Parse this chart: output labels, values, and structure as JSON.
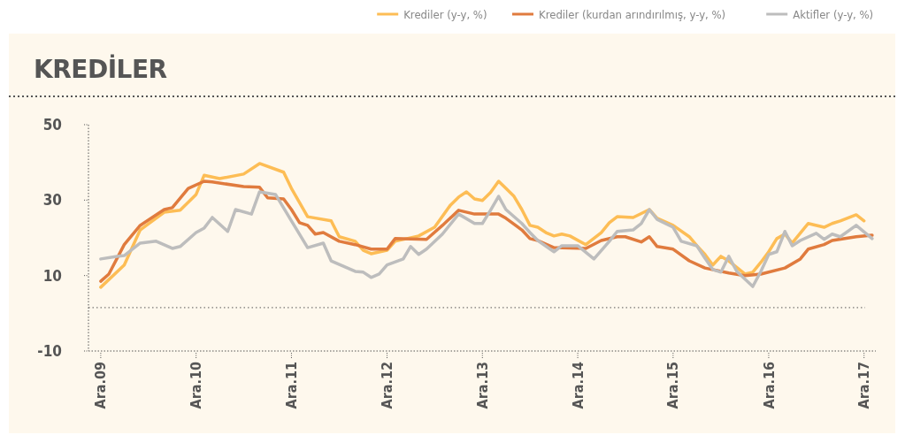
{
  "chart_data": {
    "type": "line",
    "title": "KREDİLER",
    "legend": "top right",
    "grid": false,
    "line_style": "solid",
    "marker": "none",
    "xlim": [
      "2009-10-15",
      "2018-01-15"
    ],
    "xticks": [
      {
        "value": "2009-12",
        "label": "Ara.09"
      },
      {
        "value": "2010-12",
        "label": "Ara.10"
      },
      {
        "value": "2011-12",
        "label": "Ara.11"
      },
      {
        "value": "2012-12",
        "label": "Ara.12"
      },
      {
        "value": "2013-12",
        "label": "Ara.13"
      },
      {
        "value": "2014-12",
        "label": "Ara.14"
      },
      {
        "value": "2015-12",
        "label": "Ara.15"
      },
      {
        "value": "2016-12",
        "label": "Ara.16"
      },
      {
        "value": "2017-12",
        "label": "Ara.17"
      }
    ],
    "ylim": [
      -10,
      50
    ],
    "yticks": [
      -10,
      10,
      30,
      50
    ],
    "ref_lines": [
      {
        "axis": "y",
        "value": 1.5,
        "color": "#555555",
        "line_style": "dotted"
      }
    ],
    "series": [
      {
        "name": "Krediler (y-y, %)",
        "color": "#fdbd55",
        "x": [
          "2009-12",
          "2010-03",
          "2010-05",
          "2010-08",
          "2010-10",
          "2010-12",
          "2011-01",
          "2011-03",
          "2011-06",
          "2011-08",
          "2011-11",
          "2011-12",
          "2012-02",
          "2012-05",
          "2012-06",
          "2012-08",
          "2012-09",
          "2012-10",
          "2012-12",
          "2013-01",
          "2013-04",
          "2013-06",
          "2013-08",
          "2013-09",
          "2013-10",
          "2013-11",
          "2013-12",
          "2014-01",
          "2014-02",
          "2014-03",
          "2014-04",
          "2014-05",
          "2014-06",
          "2014-07",
          "2014-08",
          "2014-09",
          "2014-10",
          "2014-11",
          "2015-01",
          "2015-03",
          "2015-04",
          "2015-05",
          "2015-07",
          "2015-09",
          "2015-10",
          "2015-12",
          "2016-02",
          "2016-03",
          "2016-04",
          "2016-05",
          "2016-06",
          "2016-07",
          "2016-09",
          "2016-10",
          "2016-11",
          "2016-12",
          "2017-01",
          "2017-02",
          "2017-03",
          "2017-05",
          "2017-07",
          "2017-08",
          "2017-09",
          "2017-11",
          "2017-12"
        ],
        "values": [
          6.9,
          12.8,
          22.1,
          26.8,
          27.3,
          31.5,
          36.6,
          35.7,
          36.9,
          39.7,
          37.4,
          33.1,
          25.6,
          24.5,
          20.3,
          19.1,
          16.7,
          15.8,
          16.7,
          19.1,
          20.5,
          22.8,
          28.7,
          30.8,
          32.2,
          30.3,
          29.9,
          32.0,
          35.0,
          33.1,
          31.0,
          27.5,
          23.3,
          22.8,
          21.4,
          20.5,
          21.0,
          20.5,
          18.2,
          21.4,
          24.0,
          25.6,
          25.4,
          27.5,
          25.2,
          23.3,
          20.3,
          17.9,
          15.6,
          12.8,
          15.1,
          13.9,
          10.4,
          10.9,
          13.5,
          16.3,
          19.8,
          21.0,
          18.6,
          23.8,
          22.8,
          23.8,
          24.5,
          26.1,
          24.5
        ]
      },
      {
        "name": "Krediler (kurdan arındırılmış, y-y, %)",
        "color": "#e07b3e",
        "x": [
          "2009-12",
          "2010-01",
          "2010-03",
          "2010-05",
          "2010-08",
          "2010-09",
          "2010-11",
          "2011-01",
          "2011-02",
          "2011-06",
          "2011-08",
          "2011-09",
          "2011-11",
          "2011-12",
          "2012-01",
          "2012-02",
          "2012-03",
          "2012-04",
          "2012-06",
          "2012-08",
          "2012-10",
          "2012-12",
          "2013-01",
          "2013-05",
          "2013-07",
          "2013-09",
          "2013-11",
          "2014-02",
          "2014-03",
          "2014-05",
          "2014-06",
          "2014-07",
          "2014-09",
          "2015-01",
          "2015-03",
          "2015-05",
          "2015-06",
          "2015-08",
          "2015-09",
          "2015-10",
          "2015-12",
          "2016-02",
          "2016-04",
          "2016-07",
          "2016-09",
          "2016-11",
          "2017-02",
          "2017-04",
          "2017-05",
          "2017-07",
          "2017-08",
          "2017-11",
          "2018-01"
        ],
        "values": [
          8.5,
          10.4,
          18.2,
          23.3,
          27.5,
          28.0,
          33.1,
          35.0,
          34.8,
          33.6,
          33.4,
          30.6,
          30.3,
          27.5,
          24.0,
          23.3,
          21.0,
          21.4,
          19.1,
          18.2,
          17.0,
          17.0,
          19.8,
          19.6,
          23.3,
          27.3,
          26.3,
          26.3,
          25.2,
          22.1,
          19.8,
          19.3,
          17.4,
          17.2,
          19.3,
          20.3,
          20.3,
          18.9,
          20.3,
          17.7,
          17.0,
          13.9,
          12.0,
          10.7,
          10.0,
          10.4,
          12.0,
          14.4,
          17.0,
          18.2,
          19.3,
          20.3,
          20.7
        ]
      },
      {
        "name": "Aktifler (y-y, %)",
        "color": "#bdbdbd",
        "x": [
          "2009-12",
          "2010-02",
          "2010-03",
          "2010-05",
          "2010-07",
          "2010-09",
          "2010-10",
          "2010-12",
          "2011-01",
          "2011-02",
          "2011-04",
          "2011-05",
          "2011-07",
          "2011-08",
          "2011-10",
          "2011-12",
          "2012-02",
          "2012-04",
          "2012-05",
          "2012-08",
          "2012-09",
          "2012-10",
          "2012-11",
          "2012-12",
          "2013-02",
          "2013-03",
          "2013-04",
          "2013-05",
          "2013-07",
          "2013-09",
          "2013-11",
          "2013-12",
          "2014-01",
          "2014-02",
          "2014-03",
          "2014-05",
          "2014-06",
          "2014-07",
          "2014-09",
          "2014-10",
          "2014-12",
          "2015-02",
          "2015-04",
          "2015-05",
          "2015-07",
          "2015-08",
          "2015-09",
          "2015-10",
          "2015-12",
          "2016-01",
          "2016-03",
          "2016-04",
          "2016-05",
          "2016-06",
          "2016-07",
          "2016-08",
          "2016-10",
          "2016-11",
          "2016-12",
          "2017-01",
          "2017-02",
          "2017-03",
          "2017-04",
          "2017-06",
          "2017-07",
          "2017-08",
          "2017-09",
          "2017-11",
          "2018-01"
        ],
        "values": [
          14.4,
          15.1,
          15.3,
          18.6,
          19.1,
          17.2,
          17.7,
          21.4,
          22.6,
          25.4,
          21.7,
          27.5,
          26.3,
          32.2,
          31.5,
          24.5,
          17.4,
          18.6,
          13.9,
          11.1,
          10.9,
          9.5,
          10.4,
          12.8,
          14.4,
          17.7,
          15.6,
          17.0,
          21.0,
          26.3,
          23.8,
          23.8,
          27.3,
          31.0,
          27.5,
          23.8,
          21.4,
          19.3,
          16.3,
          17.9,
          17.9,
          14.4,
          19.1,
          21.7,
          22.1,
          23.8,
          27.5,
          24.9,
          22.8,
          19.1,
          17.9,
          14.6,
          11.6,
          10.9,
          15.1,
          11.1,
          7.1,
          11.1,
          15.6,
          16.3,
          21.7,
          17.9,
          19.3,
          21.2,
          19.6,
          21.0,
          20.3,
          23.3,
          19.8
        ]
      }
    ]
  }
}
